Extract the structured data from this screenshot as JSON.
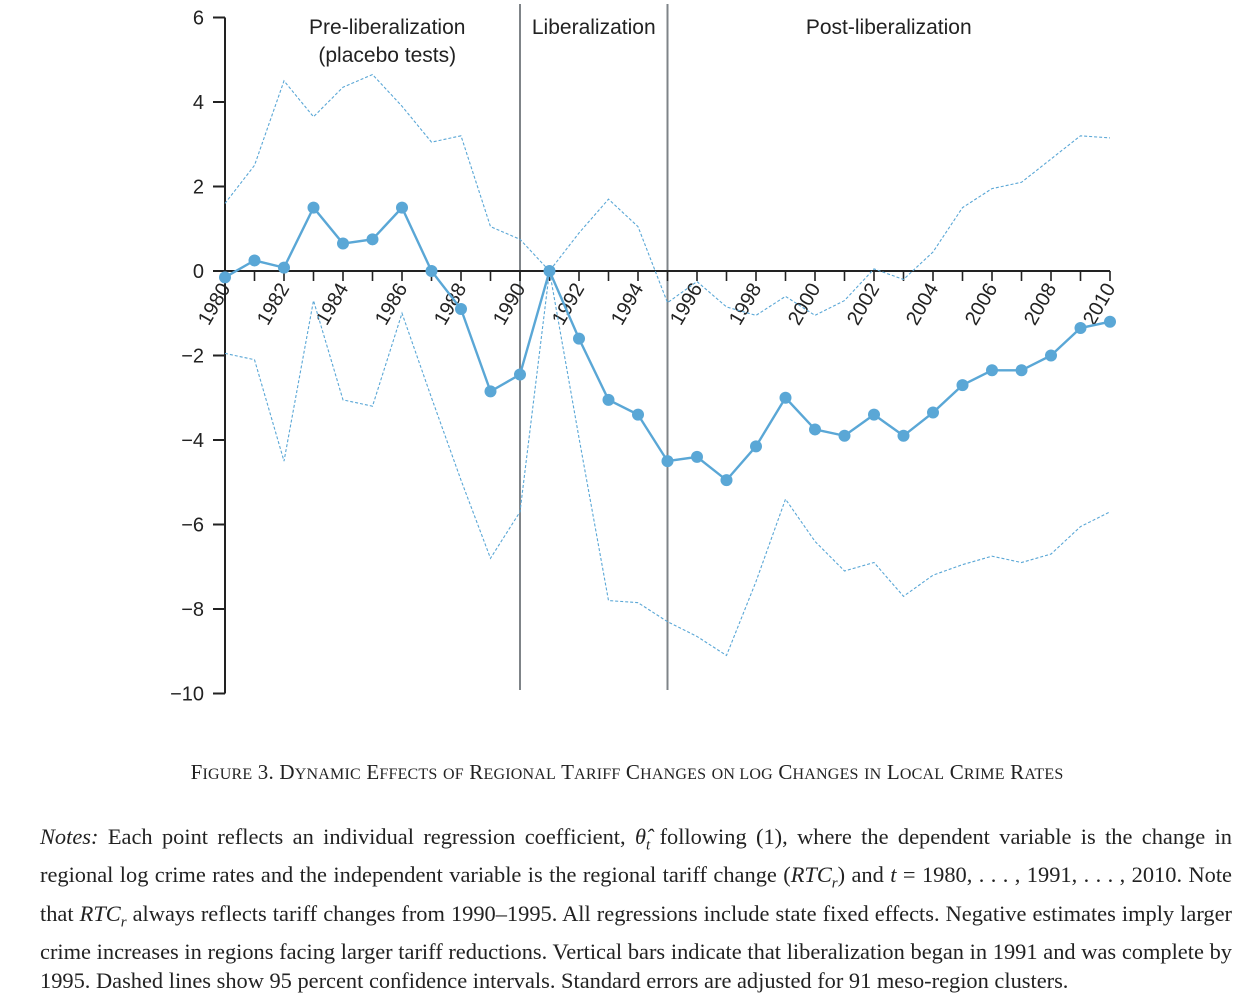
{
  "chart_data": {
    "type": "line",
    "x": [
      1980,
      1981,
      1982,
      1983,
      1984,
      1985,
      1986,
      1987,
      1988,
      1989,
      1990,
      1991,
      1992,
      1993,
      1994,
      1995,
      1996,
      1997,
      1998,
      1999,
      2000,
      2001,
      2002,
      2003,
      2004,
      2005,
      2006,
      2007,
      2008,
      2009,
      2010
    ],
    "series": [
      {
        "role": "estimate",
        "values": [
          -0.15,
          0.25,
          0.08,
          1.5,
          0.65,
          0.75,
          1.5,
          0.0,
          -0.9,
          -2.85,
          -2.45,
          0.0,
          -1.6,
          -3.05,
          -3.4,
          -4.5,
          -4.4,
          -4.95,
          -4.15,
          -3.0,
          -3.75,
          -3.9,
          -3.4,
          -3.9,
          -3.35,
          -2.7,
          -2.35,
          -2.35,
          -2.0,
          -1.35,
          -1.2
        ]
      },
      {
        "role": "upper_ci",
        "values": [
          1.6,
          2.5,
          4.5,
          3.65,
          4.35,
          4.65,
          3.9,
          3.05,
          3.2,
          1.05,
          0.75,
          0.0,
          0.9,
          1.7,
          1.05,
          -0.75,
          -0.25,
          -0.85,
          -1.05,
          -0.6,
          -1.05,
          -0.7,
          0.05,
          -0.2,
          0.45,
          1.5,
          1.95,
          2.1,
          2.65,
          3.2,
          3.15
        ]
      },
      {
        "role": "lower_ci",
        "values": [
          -1.95,
          -2.1,
          -4.5,
          -0.7,
          -3.05,
          -3.2,
          -1.0,
          -3.0,
          -4.95,
          -6.8,
          -5.7,
          0.0,
          -3.95,
          -7.8,
          -7.85,
          -8.3,
          -8.65,
          -9.1,
          -7.35,
          -5.4,
          -6.4,
          -7.1,
          -6.9,
          -7.7,
          -7.2,
          -6.95,
          -6.75,
          -6.9,
          -6.7,
          -6.05,
          -5.7
        ]
      }
    ],
    "ylim": [
      -10,
      6
    ],
    "yticks": [
      6,
      4,
      2,
      0,
      -2,
      -4,
      -6,
      -8,
      -10
    ],
    "ytick_labels": [
      "6",
      "4",
      "2",
      "0",
      "−2",
      "−4",
      "−6",
      "−8",
      "−10"
    ],
    "xlim": [
      1980,
      2010
    ],
    "xtick_labels": [
      "1980",
      "1982",
      "1984",
      "1986",
      "1988",
      "1990",
      "1992",
      "1994",
      "1996",
      "1998",
      "2000",
      "2002",
      "2004",
      "2006",
      "2008",
      "2010"
    ],
    "xtick_label_values": [
      1980,
      1982,
      1984,
      1986,
      1988,
      1990,
      1992,
      1994,
      1996,
      1998,
      2000,
      2002,
      2004,
      2006,
      2008,
      2010
    ],
    "vertical_lines": [
      1990,
      1995
    ],
    "phase_labels": [
      {
        "lines": [
          "Pre-liberalization",
          "(placebo tests)"
        ],
        "x": 1985.5
      },
      {
        "lines": [
          "Liberalization"
        ],
        "x": 1992.5
      },
      {
        "lines": [
          "Post-liberalization"
        ],
        "x": 2002.5
      }
    ],
    "grid": false,
    "colors": {
      "line": "#5aa7d6",
      "axis": "#222222",
      "vline": "#7f8488"
    }
  },
  "caption": {
    "first": "F",
    "first_small": "IGURE",
    "number": " 3. ",
    "words": [
      [
        "D",
        "YNAMIC"
      ],
      [
        "E",
        "FFECTS"
      ],
      [
        "",
        "OF"
      ],
      [
        "R",
        "EGIONAL"
      ],
      [
        "T",
        "ARIFF"
      ],
      [
        "C",
        "HANGES"
      ],
      [
        "",
        "ON LOG"
      ],
      [
        "C",
        "HANGES"
      ],
      [
        "",
        "IN"
      ],
      [
        "L",
        "OCAL"
      ],
      [
        "C",
        "RIME"
      ],
      [
        "R",
        "ATES"
      ]
    ]
  },
  "notes": {
    "label": "Notes:",
    "text1": " Each point reflects an individual regression coefficient, ",
    "theta": "θ̂",
    "theta_sub": "t",
    "text2": " following (1), where the dependent variable is the change in regional log crime rates and the independent variable is the regional tariff change (",
    "rtc": "RTC",
    "rtc_sub": "r",
    "text3": ") and ",
    "t_var": "t",
    "text4": " = 1980, . . . , 1991, . . . , 2010. Note that ",
    "text5": " always reflects tariff changes from 1990–1995. All regressions include state fixed effects. Negative estimates imply larger crime increases in regions facing larger tariff reductions. Vertical bars indicate that liberalization began in 1991 and was complete by 1995. Dashed lines show 95 percent confidence intervals. Standard errors are adjusted for 91 meso-region clusters."
  }
}
